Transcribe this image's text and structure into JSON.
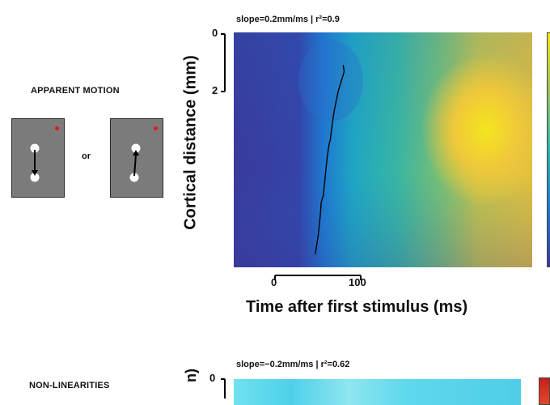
{
  "panel_a": {
    "condition_label": "APPARENT MOTION",
    "or_label": "or",
    "fit_label": "slope=0.2mm/ms | r²=0.9",
    "ylabel": "Cortical distance (mm)",
    "xlabel": "Time after first stimulus (ms)",
    "y_ticks": [
      "0",
      "2"
    ],
    "x_ticks": [
      "0",
      "100"
    ],
    "colors": {
      "fixation": "#e21a1a",
      "stimulus_background": "#7b7b7b"
    },
    "stimuli": [
      {
        "name": "vertical-motion",
        "arrow": "down"
      },
      {
        "name": "tilted-motion",
        "arrow": "up"
      }
    ]
  },
  "panel_b": {
    "condition_label": "NON-LINEARITIES",
    "fit_label": "slope=−0.2mm/ms | r²=0.62",
    "y_ticks": [
      "0"
    ]
  },
  "chart_data": [
    {
      "type": "heatmap",
      "title": "slope=0.2mm/ms | r²=0.9",
      "xlabel": "Time after first stimulus (ms)",
      "ylabel": "Cortical distance (mm)",
      "x_ticks": [
        0,
        100
      ],
      "y_ticks": [
        0,
        2
      ],
      "xlim": [
        -50,
        250
      ],
      "ylim": [
        0,
        7.2
      ],
      "grid": false,
      "propagation_trace": {
        "x": [
          32,
          35,
          37,
          38,
          40,
          42,
          44,
          46,
          47,
          49,
          51,
          53,
          55,
          57,
          59,
          61,
          60
        ],
        "y": [
          6.8,
          6.2,
          5.6,
          5.2,
          5.0,
          4.4,
          3.8,
          3.4,
          3.3,
          2.8,
          2.4,
          2.1,
          1.8,
          1.6,
          1.4,
          1.2,
          1.0
        ]
      },
      "colormap": "parula"
    },
    {
      "type": "heatmap",
      "title": "slope=−0.2mm/ms | r²=0.62",
      "y_ticks": [
        0
      ],
      "colormap": "parula"
    }
  ]
}
